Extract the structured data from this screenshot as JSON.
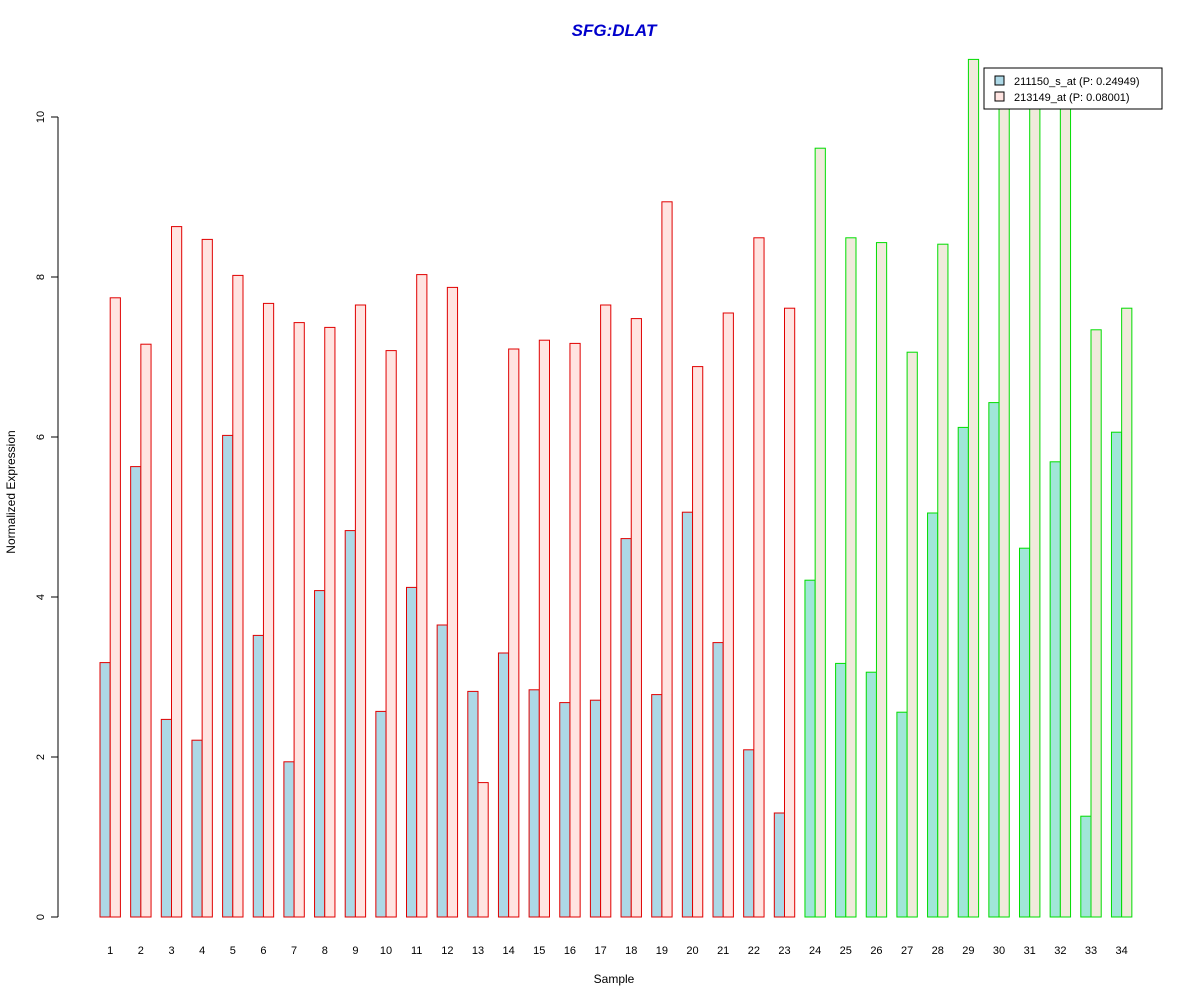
{
  "colors": {
    "title": "#0000CC",
    "group1_stroke": "#E00000",
    "group2_stroke": "#00DD00",
    "group1_series1_fill": "#ADD8E6",
    "group1_series2_fill": "#FFE4E1",
    "group2_series1_fill": "#A0E6D8",
    "group2_series2_fill": "#F0EADC",
    "axis": "#000000"
  },
  "chart_data": {
    "type": "bar",
    "title": "SFG:DLAT",
    "xlabel": "Sample",
    "ylabel": "Normalized Expression",
    "ylim": [
      0,
      10.7
    ],
    "yticks": [
      0,
      2,
      4,
      6,
      8,
      10
    ],
    "grid": false,
    "legend_position": "top-right",
    "categories": [
      "1",
      "2",
      "3",
      "4",
      "5",
      "6",
      "7",
      "8",
      "9",
      "10",
      "11",
      "12",
      "13",
      "14",
      "15",
      "16",
      "17",
      "18",
      "19",
      "20",
      "21",
      "22",
      "23",
      "24",
      "25",
      "26",
      "27",
      "28",
      "29",
      "30",
      "31",
      "32",
      "33",
      "34"
    ],
    "group_split_after": 23,
    "series": [
      {
        "name": "211150_s_at (P: 0.24949)",
        "values": [
          3.18,
          5.63,
          2.47,
          2.21,
          6.02,
          3.52,
          1.94,
          4.08,
          4.83,
          2.57,
          4.12,
          3.65,
          2.82,
          3.3,
          2.84,
          2.68,
          2.71,
          4.73,
          2.78,
          5.06,
          3.43,
          2.09,
          1.3,
          4.21,
          3.17,
          3.06,
          2.56,
          5.05,
          6.12,
          6.43,
          4.61,
          5.69,
          1.26,
          6.06
        ]
      },
      {
        "name": "213149_at (P: 0.08001)",
        "values": [
          7.74,
          7.16,
          8.63,
          8.47,
          8.02,
          7.67,
          7.43,
          7.37,
          7.65,
          7.08,
          8.03,
          7.87,
          1.68,
          7.1,
          7.21,
          7.17,
          7.65,
          7.48,
          8.94,
          6.88,
          7.55,
          8.49,
          7.61,
          9.61,
          8.49,
          8.43,
          7.06,
          8.41,
          10.72,
          10.3,
          10.2,
          10.5,
          7.34,
          7.61
        ]
      }
    ]
  }
}
